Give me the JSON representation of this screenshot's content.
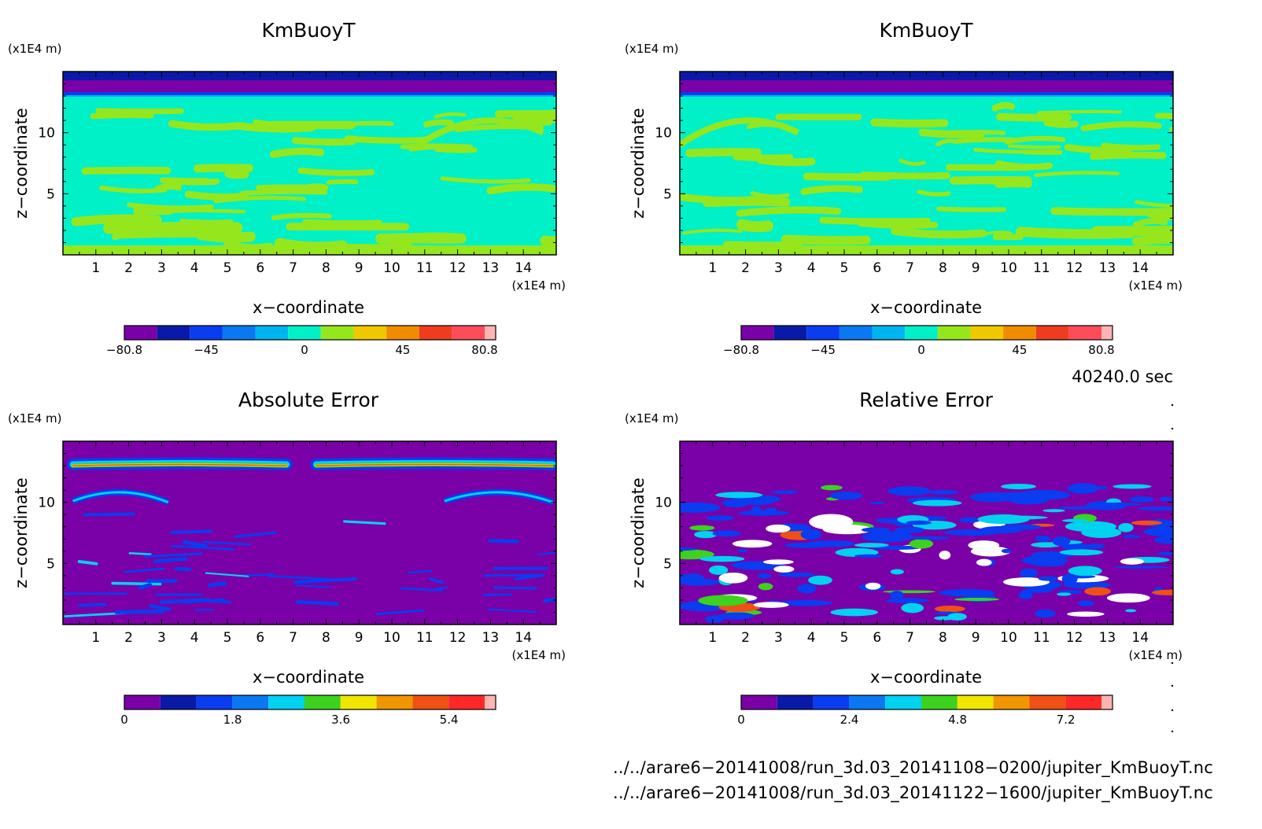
{
  "chart_data": [
    {
      "type": "heatmap",
      "panel": "top-left",
      "title": "KmBuoyT",
      "xlabel": "x−coordinate",
      "ylabel": "z−coordinate",
      "x_unit": "(x1E4 m)",
      "y_unit": "(x1E4 m)",
      "xlim": [
        0,
        15
      ],
      "ylim": [
        0,
        15
      ],
      "x_ticks": [
        "1",
        "2",
        "3",
        "4",
        "5",
        "6",
        "7",
        "8",
        "9",
        "10",
        "11",
        "12",
        "13",
        "14"
      ],
      "y_ticks": [
        "5",
        "10"
      ],
      "colorbar": {
        "colors": [
          "#7a00a8",
          "#0a1aa8",
          "#0a3cf0",
          "#0a78f0",
          "#00b4f0",
          "#00f0c8",
          "#96e61e",
          "#f0c800",
          "#f08c00",
          "#f03c1e",
          "#ff4c5a",
          "#ffb4b4"
        ],
        "tick_labels": [
          "−80.8",
          "−45",
          "0",
          "45",
          "80.8"
        ]
      },
      "dominant_field": "0 to 13 (x1E4 m) height ~ value band 0; top layers negative"
    },
    {
      "type": "heatmap",
      "panel": "top-right",
      "title": "KmBuoyT",
      "xlabel": "x−coordinate",
      "ylabel": "z−coordinate",
      "x_unit": "(x1E4 m)",
      "y_unit": "(x1E4 m)",
      "xlim": [
        0,
        15
      ],
      "ylim": [
        0,
        15
      ],
      "x_ticks": [
        "1",
        "2",
        "3",
        "4",
        "5",
        "6",
        "7",
        "8",
        "9",
        "10",
        "11",
        "12",
        "13",
        "14"
      ],
      "y_ticks": [
        "5",
        "10"
      ],
      "colorbar": {
        "colors": [
          "#7a00a8",
          "#0a1aa8",
          "#0a3cf0",
          "#0a78f0",
          "#00b4f0",
          "#00f0c8",
          "#96e61e",
          "#f0c800",
          "#f08c00",
          "#f03c1e",
          "#ff4c5a",
          "#ffb4b4"
        ],
        "tick_labels": [
          "−80.8",
          "−45",
          "0",
          "45",
          "80.8"
        ]
      }
    },
    {
      "type": "heatmap",
      "panel": "bottom-left",
      "title": "Absolute Error",
      "xlabel": "x−coordinate",
      "ylabel": "z−coordinate",
      "x_unit": "(x1E4 m)",
      "y_unit": "(x1E4 m)",
      "xlim": [
        0,
        15
      ],
      "ylim": [
        0,
        15
      ],
      "x_ticks": [
        "1",
        "2",
        "3",
        "4",
        "5",
        "6",
        "7",
        "8",
        "9",
        "10",
        "11",
        "12",
        "13",
        "14"
      ],
      "y_ticks": [
        "5",
        "10"
      ],
      "colorbar": {
        "colors": [
          "#7a00a8",
          "#0a1aa8",
          "#0a3cf0",
          "#0a78f0",
          "#00d2f0",
          "#3cd21e",
          "#f0e600",
          "#f09600",
          "#f05014",
          "#ff2828",
          "#ffb4b4"
        ],
        "tick_labels": [
          "0",
          "1.8",
          "3.6",
          "5.4"
        ]
      }
    },
    {
      "type": "heatmap",
      "panel": "bottom-right",
      "title": "Relative Error",
      "xlabel": "x−coordinate",
      "ylabel": "z−coordinate",
      "x_unit": "(x1E4 m)",
      "y_unit": "(x1E4 m)",
      "xlim": [
        0,
        15
      ],
      "ylim": [
        0,
        15
      ],
      "x_ticks": [
        "1",
        "2",
        "3",
        "4",
        "5",
        "6",
        "7",
        "8",
        "9",
        "10",
        "11",
        "12",
        "13",
        "14"
      ],
      "y_ticks": [
        "5",
        "10"
      ],
      "colorbar": {
        "colors": [
          "#7a00a8",
          "#0a1aa8",
          "#0a3cf0",
          "#0a78f0",
          "#00d2f0",
          "#3cd21e",
          "#f0e600",
          "#f09600",
          "#f05014",
          "#ff2828",
          "#ffb4b4"
        ],
        "tick_labels": [
          "0",
          "2.4",
          "4.8",
          "7.2"
        ]
      }
    }
  ],
  "time_label": "40240.0 sec",
  "files": [
    "../../arare6−20141008/run_3d.03_20141108−0200/jupiter_KmBuoyT.nc",
    "../../arare6−20141008/run_3d.03_20141122−1600/jupiter_KmBuoyT.nc"
  ]
}
